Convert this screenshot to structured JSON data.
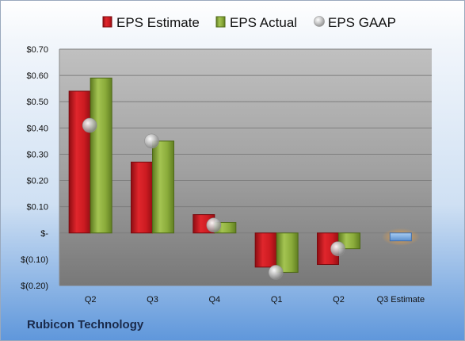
{
  "company": "Rubicon Technology",
  "chart_data": {
    "type": "bar",
    "title": "",
    "xlabel": "",
    "ylabel": "",
    "categories": [
      "Q2",
      "Q3",
      "Q4",
      "Q1",
      "Q2",
      "Q3 Estimate"
    ],
    "ylim": [
      -0.2,
      0.7
    ],
    "yticks": [
      0.7,
      0.6,
      0.5,
      0.4,
      0.3,
      0.2,
      0.1,
      0,
      -0.1,
      -0.2
    ],
    "ytick_labels": [
      "$0.70",
      "$0.60",
      "$0.50",
      "$0.40",
      "$0.30",
      "$0.20",
      "$0.10",
      "$-",
      "$(0.10)",
      "$(0.20)"
    ],
    "grid": true,
    "legend_position": "top",
    "series": [
      {
        "name": "EPS Estimate",
        "kind": "bar",
        "color": "#c8161d",
        "values": [
          0.54,
          0.27,
          0.07,
          -0.13,
          -0.12,
          -0.03
        ]
      },
      {
        "name": "EPS Actual",
        "kind": "bar",
        "color": "#8aab3a",
        "values": [
          0.59,
          0.35,
          0.04,
          -0.15,
          -0.06,
          null
        ]
      },
      {
        "name": "EPS GAAP",
        "kind": "marker",
        "color": "#b4b4b4",
        "values": [
          0.41,
          0.35,
          0.03,
          -0.15,
          -0.06,
          null
        ]
      }
    ],
    "estimate_bar_color": "#6a9ed8",
    "estimate_glow_color": "#f5a23a"
  }
}
